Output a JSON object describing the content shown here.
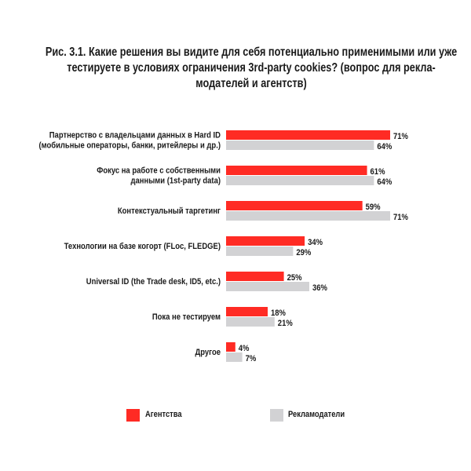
{
  "chart_data": {
    "type": "bar",
    "orientation": "horizontal",
    "title": "Рис. 3.1. Какие решения вы видите для себя потенциально применимыми или уже тестируете в условиях ограничения 3rd-party cookies? (вопрос для рекла-модателей и агентств)",
    "categories": [
      [
        "Партнерство с владельцами данных в Hard ID",
        "(мобильные операторы, банки, ритейлеры и др.)"
      ],
      [
        "Фокус на работе с собственными",
        "данными (1st-party data)"
      ],
      [
        "Контекстуальный таргетинг"
      ],
      [
        "Технологии на базе когорт (FLoc, FLEDGE)"
      ],
      [
        "Universal ID (the Trade desk, ID5, etc.)"
      ],
      [
        "Пока не тестируем"
      ],
      [
        "Другое"
      ]
    ],
    "series": [
      {
        "name": "Агентства",
        "color": "#ff2b24",
        "values": [
          71,
          61,
          59,
          34,
          25,
          18,
          4
        ]
      },
      {
        "name": "Рекламодатели",
        "color": "#d2d2d4",
        "values": [
          64,
          64,
          71,
          29,
          36,
          21,
          7
        ]
      }
    ],
    "value_suffix": "%",
    "xlim": [
      0,
      100
    ],
    "grid": false,
    "legend_position": "bottom"
  }
}
